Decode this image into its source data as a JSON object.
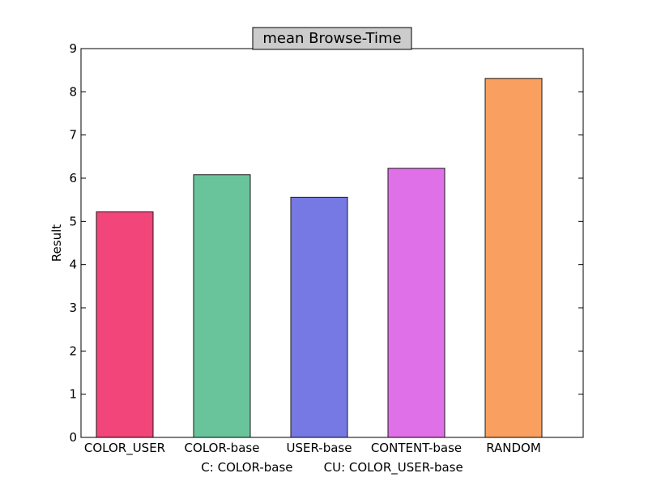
{
  "chart_data": {
    "type": "bar",
    "title": "mean Browse-Time",
    "xlabel": "C: COLOR-base        CU: COLOR_USER-base",
    "ylabel": "Result",
    "ylim": [
      0,
      9
    ],
    "yticks": [
      0,
      1,
      2,
      3,
      4,
      5,
      6,
      7,
      8,
      9
    ],
    "grid": false,
    "categories": [
      "COLOR_USER",
      "COLOR-base",
      "USER-base",
      "CONTENT-base",
      "RANDOM"
    ],
    "values": [
      5.22,
      6.08,
      5.56,
      6.23,
      8.31
    ],
    "colors": [
      "#f2457a",
      "#69c49c",
      "#7679e3",
      "#e070e8",
      "#f9a060"
    ],
    "edge_color": "#1a1a1a",
    "title_box_color": "#cccccc"
  }
}
